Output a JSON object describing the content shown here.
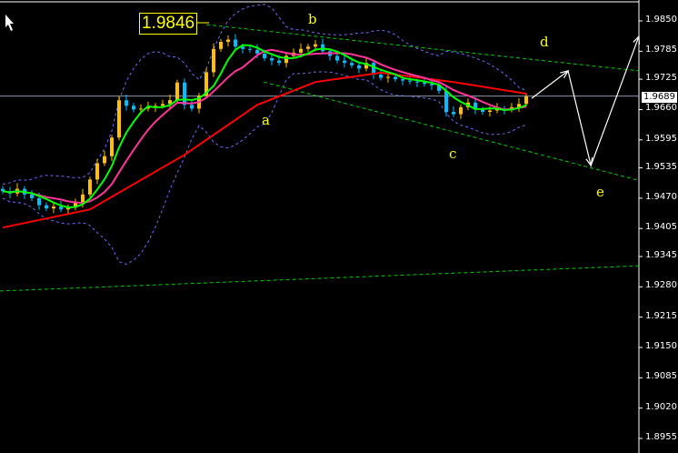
{
  "chart_data": {
    "type": "candlestick",
    "title": "",
    "ylim": [
      1.8955,
      1.987
    ],
    "y_ticks": [
      "1.9850",
      "1.9785",
      "1.9725",
      "1.9660",
      "1.9595",
      "1.9535",
      "1.9470",
      "1.9405",
      "1.9345",
      "1.9280",
      "1.9215",
      "1.9150",
      "1.9085",
      "1.9020",
      "1.8955"
    ],
    "current_price": "1.9689",
    "high_marker": "1.9846",
    "closes": [
      1.9485,
      1.948,
      1.949,
      1.9478,
      1.947,
      1.9455,
      1.9448,
      1.9452,
      1.9446,
      1.945,
      1.946,
      1.9478,
      1.951,
      1.9545,
      1.956,
      1.96,
      1.968,
      1.9668,
      1.966,
      1.9662,
      1.9665,
      1.9668,
      1.9672,
      1.968,
      1.9718,
      1.967,
      1.9662,
      1.969,
      1.974,
      1.979,
      1.9805,
      1.981,
      1.9795,
      1.979,
      1.9788,
      1.978,
      1.977,
      1.9765,
      1.976,
      1.9775,
      1.9782,
      1.979,
      1.9795,
      1.98,
      1.9785,
      1.9775,
      1.9765,
      1.976,
      1.9755,
      1.9748,
      1.976,
      1.9735,
      1.9728,
      1.973,
      1.9725,
      1.9722,
      1.972,
      1.9718,
      1.9715,
      1.9712,
      1.97,
      1.9655,
      1.965,
      1.9665,
      1.9675,
      1.966,
      1.9655,
      1.9658,
      1.9662,
      1.966,
      1.9665,
      1.9672,
      1.9688
    ],
    "slow_ma": [
      [
        0,
        1.9407
      ],
      [
        12,
        1.9446
      ],
      [
        25,
        1.9563
      ],
      [
        35,
        1.967
      ],
      [
        43,
        1.9719
      ],
      [
        52,
        1.9739
      ],
      [
        62,
        1.9719
      ],
      [
        72,
        1.9694
      ]
    ],
    "trendlines": [
      {
        "from": [
          28,
          1.9842
        ],
        "to": [
          87.5,
          1.9743
        ]
      },
      {
        "from": [
          35.9,
          1.9719
        ],
        "to": [
          87.5,
          1.9508
        ]
      },
      {
        "from": [
          -0.4,
          1.9271
        ],
        "to": [
          87.5,
          1.9325
        ]
      }
    ],
    "projection": [
      [
        72.75,
        1.9684
      ],
      [
        77.75,
        1.9743
      ],
      [
        80.9,
        1.954
      ],
      [
        87.5,
        1.9817
      ]
    ],
    "wave_labels": [
      "a",
      "b",
      "c",
      "d",
      "e"
    ],
    "colors": {
      "bull": "#ffc000",
      "bear": "#00bfff",
      "fast_ma": "#00ff00",
      "mid_ma": "#ff3399",
      "slow_ma": "#ff0000",
      "bands": "#6a6aff",
      "trend": "#00cc00",
      "projection": "#ffffff",
      "labels": "#ffff00"
    }
  }
}
